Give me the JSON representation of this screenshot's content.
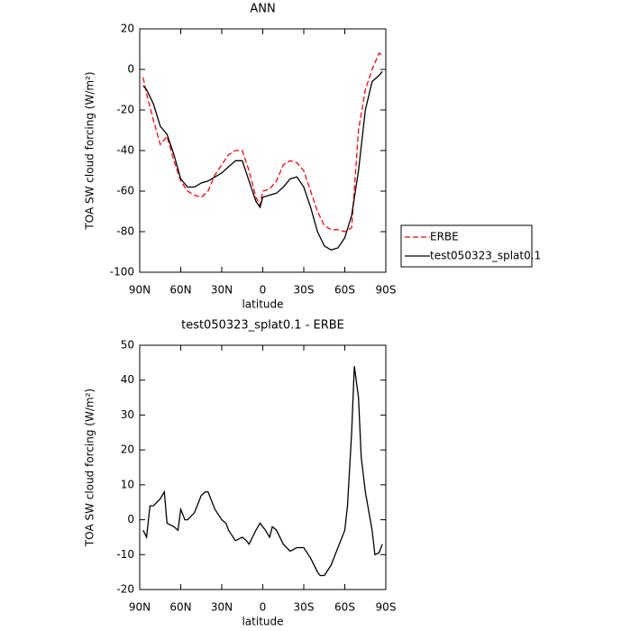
{
  "chart_data": [
    {
      "type": "line",
      "title": "ANN",
      "xlabel": "latitude",
      "ylabel": "TOA SW cloud forcing (W/m²)",
      "x": [
        87.5,
        85,
        80,
        75,
        70,
        65,
        60,
        55,
        50,
        45,
        40,
        35,
        30,
        25,
        20,
        15,
        10,
        5,
        2,
        0,
        -5,
        -10,
        -15,
        -20,
        -25,
        -30,
        -35,
        -40,
        -45,
        -50,
        -55,
        -60,
        -65,
        -70,
        -75,
        -80,
        -85,
        -87.5
      ],
      "series": [
        {
          "name": "ERBE",
          "color": "#ff0000",
          "line_style": "dashed",
          "values": [
            -4,
            -12,
            -25,
            -37,
            -33,
            -45,
            -55,
            -60,
            -62,
            -63,
            -60,
            -52,
            -47,
            -42,
            -40,
            -40,
            -50,
            -63,
            -67,
            -60,
            -59,
            -55,
            -47,
            -45,
            -46,
            -50,
            -60,
            -70,
            -77,
            -79,
            -79,
            -80,
            -78,
            -30,
            -10,
            0,
            8,
            7
          ]
        },
        {
          "name": "test050323_splat0.1",
          "color": "#000000",
          "line_style": "solid",
          "values": [
            -8,
            -10,
            -17,
            -28,
            -32,
            -42,
            -54,
            -58,
            -58,
            -56,
            -55,
            -53,
            -51,
            -48,
            -45,
            -45,
            -55,
            -65,
            -68,
            -63,
            -62,
            -61,
            -58,
            -54,
            -53,
            -58,
            -68,
            -80,
            -87,
            -89,
            -88,
            -83,
            -72,
            -50,
            -20,
            -6,
            -3,
            -1
          ]
        }
      ],
      "xlim": [
        90,
        -90
      ],
      "xticks": [
        {
          "value": 90,
          "label": "90N"
        },
        {
          "value": 60,
          "label": "60N"
        },
        {
          "value": 30,
          "label": "30N"
        },
        0,
        {
          "value": -30,
          "label": "30S"
        },
        {
          "value": -60,
          "label": "60S"
        },
        {
          "value": -90,
          "label": "90S"
        }
      ],
      "ylim": [
        -100,
        20
      ],
      "yticks": [
        -100,
        -80,
        -60,
        -40,
        -20,
        0,
        20
      ],
      "legend": "outside right"
    },
    {
      "type": "line",
      "title": "test050323_splat0.1 - ERBE",
      "xlabel": "latitude",
      "ylabel": "TOA SW cloud forcing (W/m²)",
      "x": [
        87.5,
        85,
        82.5,
        80,
        75,
        72,
        70,
        65,
        62,
        60,
        57,
        55,
        50,
        45,
        42,
        40,
        35,
        30,
        27,
        25,
        20,
        15,
        12,
        10,
        5,
        2,
        0,
        -2,
        -5,
        -7,
        -10,
        -15,
        -20,
        -25,
        -30,
        -35,
        -40,
        -42,
        -45,
        -50,
        -55,
        -60,
        -62,
        -65,
        -67,
        -70,
        -72,
        -75,
        -80,
        -82,
        -85,
        -87.5
      ],
      "series": [
        {
          "color": "#000000",
          "line_style": "solid",
          "values": [
            -3,
            -5,
            4,
            4,
            6,
            8,
            -1,
            -2,
            -3,
            3,
            0,
            0,
            2,
            7,
            8,
            8,
            3,
            0,
            -1,
            -3,
            -6,
            -5,
            -6,
            -7,
            -3,
            -1,
            -2,
            -3,
            -5,
            -2,
            -3,
            -7,
            -9,
            -8,
            -8,
            -11,
            -15,
            -16,
            -16,
            -13,
            -8,
            -3,
            4,
            25,
            44,
            35,
            18,
            8,
            -3,
            -10,
            -9.5,
            -7
          ]
        }
      ],
      "xlim": [
        90,
        -90
      ],
      "xticks": [
        {
          "value": 90,
          "label": "90N"
        },
        {
          "value": 60,
          "label": "60N"
        },
        {
          "value": 30,
          "label": "30N"
        },
        0,
        {
          "value": -30,
          "label": "30S"
        },
        {
          "value": -60,
          "label": "60S"
        },
        {
          "value": -90,
          "label": "90S"
        }
      ],
      "ylim": [
        -20,
        50
      ],
      "yticks": [
        -20,
        -10,
        0,
        10,
        20,
        30,
        40,
        50
      ]
    }
  ]
}
